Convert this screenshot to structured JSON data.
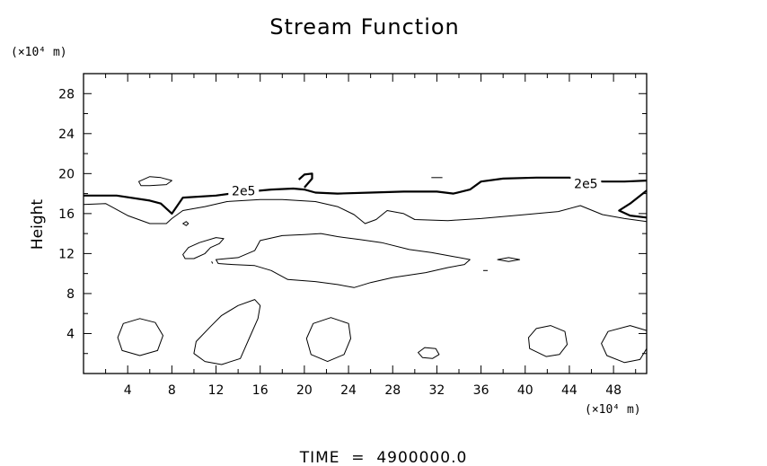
{
  "chart_data": {
    "type": "contour",
    "title": "Stream Function",
    "ylabel": "Height",
    "y_unit": "(×10⁴ m)",
    "x_unit": "(×10⁴ m)",
    "footer": "TIME  =  4900000.0",
    "xlim": [
      0,
      51
    ],
    "ylim": [
      0,
      30
    ],
    "x_ticks": [
      4,
      8,
      12,
      16,
      20,
      24,
      28,
      32,
      36,
      40,
      44,
      48
    ],
    "y_ticks": [
      4,
      8,
      12,
      16,
      20,
      24,
      28
    ],
    "contour_label": "2e5",
    "label_positions": [
      [
        14.5,
        18.3
      ],
      [
        45.5,
        19.0
      ]
    ],
    "contours": [
      {
        "level": "2e5",
        "weight": "bold",
        "points": [
          [
            0,
            17.8
          ],
          [
            3,
            17.8
          ],
          [
            6,
            17.3
          ],
          [
            7,
            17.0
          ],
          [
            8,
            16.0
          ],
          [
            9,
            17.6
          ],
          [
            12,
            17.8
          ],
          [
            14,
            18.1
          ],
          [
            17,
            18.4
          ],
          [
            19,
            18.5
          ],
          [
            20,
            18.4
          ],
          [
            21,
            18.1
          ],
          [
            23,
            18.0
          ],
          [
            26,
            18.1
          ],
          [
            29,
            18.2
          ],
          [
            32,
            18.2
          ],
          [
            33.5,
            18.0
          ],
          [
            35,
            18.4
          ],
          [
            36,
            19.2
          ],
          [
            38,
            19.5
          ],
          [
            41,
            19.6
          ],
          [
            44,
            19.6
          ],
          [
            47,
            19.2
          ],
          [
            49,
            19.2
          ],
          [
            51,
            19.3
          ]
        ]
      },
      {
        "level": "2e5",
        "weight": "bold",
        "points": [
          [
            19.5,
            19.4
          ],
          [
            20,
            19.9
          ],
          [
            20.7,
            20.0
          ],
          [
            20.7,
            19.5
          ],
          [
            20.0,
            18.6
          ]
        ]
      },
      {
        "level": "2e5",
        "weight": "bold",
        "points": [
          [
            51,
            18.3
          ],
          [
            49.5,
            17.0
          ],
          [
            48.5,
            16.3
          ],
          [
            49.5,
            15.8
          ],
          [
            51,
            15.6
          ]
        ]
      },
      {
        "level": "",
        "weight": "thin",
        "closed": true,
        "points": [
          [
            5,
            19.2
          ],
          [
            6,
            19.7
          ],
          [
            7,
            19.6
          ],
          [
            8,
            19.3
          ],
          [
            7.5,
            18.9
          ],
          [
            6,
            18.8
          ],
          [
            5.2,
            18.8
          ]
        ]
      },
      {
        "level": "",
        "weight": "thin",
        "points": [
          [
            31.5,
            19.6
          ],
          [
            32.5,
            19.6
          ]
        ]
      },
      {
        "level": "",
        "weight": "thin",
        "points": [
          [
            0,
            16.9
          ],
          [
            2,
            17.0
          ],
          [
            4,
            15.8
          ],
          [
            6,
            15.0
          ],
          [
            7.5,
            15.0
          ],
          [
            8,
            15.5
          ],
          [
            9,
            16.3
          ],
          [
            11,
            16.7
          ],
          [
            13,
            17.2
          ],
          [
            16,
            17.4
          ],
          [
            18,
            17.4
          ],
          [
            21,
            17.2
          ],
          [
            23,
            16.7
          ],
          [
            24.5,
            15.9
          ],
          [
            25.5,
            15.0
          ],
          [
            26.5,
            15.4
          ],
          [
            27.5,
            16.3
          ],
          [
            29,
            16.0
          ],
          [
            30,
            15.4
          ],
          [
            33,
            15.3
          ],
          [
            36,
            15.5
          ],
          [
            40,
            15.9
          ],
          [
            43,
            16.2
          ],
          [
            45,
            16.8
          ],
          [
            47,
            15.9
          ],
          [
            49,
            15.5
          ],
          [
            51,
            15.2
          ]
        ]
      },
      {
        "level": "",
        "weight": "thin",
        "closed": true,
        "points": [
          [
            9.0,
            15.0
          ],
          [
            9.3,
            15.2
          ],
          [
            9.5,
            15.0
          ],
          [
            9.3,
            14.8
          ]
        ]
      },
      {
        "level": "",
        "weight": "thin",
        "closed": true,
        "points": [
          [
            9.0,
            11.9
          ],
          [
            9.5,
            12.6
          ],
          [
            10.5,
            13.1
          ],
          [
            12.0,
            13.6
          ],
          [
            12.7,
            13.5
          ],
          [
            12.3,
            13.0
          ],
          [
            11.5,
            12.6
          ],
          [
            11.0,
            12.0
          ],
          [
            10.0,
            11.5
          ],
          [
            9.2,
            11.5
          ]
        ]
      },
      {
        "level": "",
        "weight": "thin",
        "closed": true,
        "points": [
          [
            12.0,
            11.4
          ],
          [
            14.0,
            11.6
          ],
          [
            15.5,
            12.3
          ],
          [
            16.0,
            13.3
          ],
          [
            18,
            13.8
          ],
          [
            20,
            13.9
          ],
          [
            21.5,
            14.0
          ],
          [
            23,
            13.7
          ],
          [
            25,
            13.4
          ],
          [
            27,
            13.1
          ],
          [
            29.5,
            12.4
          ],
          [
            31.5,
            12.1
          ],
          [
            33.5,
            11.7
          ],
          [
            35,
            11.4
          ],
          [
            34.5,
            10.9
          ],
          [
            33,
            10.6
          ],
          [
            31,
            10.1
          ],
          [
            28,
            9.6
          ],
          [
            26,
            9.1
          ],
          [
            24.5,
            8.6
          ],
          [
            23,
            8.9
          ],
          [
            21,
            9.2
          ],
          [
            18.5,
            9.4
          ],
          [
            17,
            10.3
          ],
          [
            15.5,
            10.8
          ],
          [
            13.5,
            10.9
          ],
          [
            12.2,
            11.0
          ]
        ]
      },
      {
        "level": "",
        "weight": "thin",
        "points": [
          [
            11.6,
            11.2
          ],
          [
            11.7,
            11.0
          ]
        ]
      },
      {
        "level": "",
        "weight": "thin",
        "closed": true,
        "points": [
          [
            37.5,
            11.4
          ],
          [
            38.5,
            11.6
          ],
          [
            39.5,
            11.4
          ],
          [
            38.5,
            11.2
          ]
        ]
      },
      {
        "level": "",
        "weight": "thin",
        "points": [
          [
            36.2,
            10.3
          ],
          [
            36.6,
            10.3
          ]
        ]
      },
      {
        "level": "",
        "weight": "thin",
        "closed": true,
        "points": [
          [
            5.1,
            5.5
          ],
          [
            6.5,
            5.1
          ],
          [
            7.2,
            3.8
          ],
          [
            6.7,
            2.3
          ],
          [
            5.1,
            1.8
          ],
          [
            3.5,
            2.3
          ],
          [
            3.1,
            3.6
          ],
          [
            3.6,
            5.0
          ]
        ]
      },
      {
        "level": "",
        "weight": "thin",
        "closed": true,
        "points": [
          [
            11.5,
            4.7
          ],
          [
            12.5,
            5.8
          ],
          [
            14.0,
            6.8
          ],
          [
            15.5,
            7.4
          ],
          [
            16.0,
            6.8
          ],
          [
            15.8,
            5.5
          ],
          [
            15.0,
            3.5
          ],
          [
            14.2,
            1.5
          ],
          [
            12.5,
            0.9
          ],
          [
            11.0,
            1.2
          ],
          [
            10.0,
            2.0
          ],
          [
            10.2,
            3.2
          ]
        ]
      },
      {
        "level": "",
        "weight": "thin",
        "closed": true,
        "points": [
          [
            22.4,
            5.6
          ],
          [
            24,
            5.0
          ],
          [
            24.2,
            3.5
          ],
          [
            23.6,
            1.9
          ],
          [
            22.1,
            1.2
          ],
          [
            20.6,
            1.9
          ],
          [
            20.2,
            3.5
          ],
          [
            20.8,
            5.0
          ]
        ]
      },
      {
        "level": "",
        "weight": "thin",
        "closed": true,
        "points": [
          [
            30.9,
            2.6
          ],
          [
            31.9,
            2.5
          ],
          [
            32.2,
            1.9
          ],
          [
            31.6,
            1.5
          ],
          [
            30.7,
            1.6
          ],
          [
            30.3,
            2.1
          ]
        ]
      },
      {
        "level": "",
        "weight": "thin",
        "closed": true,
        "points": [
          [
            42.3,
            4.8
          ],
          [
            43.6,
            4.2
          ],
          [
            43.8,
            2.9
          ],
          [
            43.1,
            1.9
          ],
          [
            41.9,
            1.7
          ],
          [
            40.4,
            2.5
          ],
          [
            40.3,
            3.6
          ],
          [
            41,
            4.5
          ]
        ]
      },
      {
        "level": "",
        "weight": "thin",
        "closed": true,
        "points": [
          [
            49.5,
            4.8
          ],
          [
            51,
            4.3
          ],
          [
            51,
            2.5
          ],
          [
            50.4,
            1.4
          ],
          [
            49.0,
            1.1
          ],
          [
            47.4,
            1.8
          ],
          [
            46.9,
            3.0
          ],
          [
            47.5,
            4.2
          ]
        ]
      }
    ]
  }
}
